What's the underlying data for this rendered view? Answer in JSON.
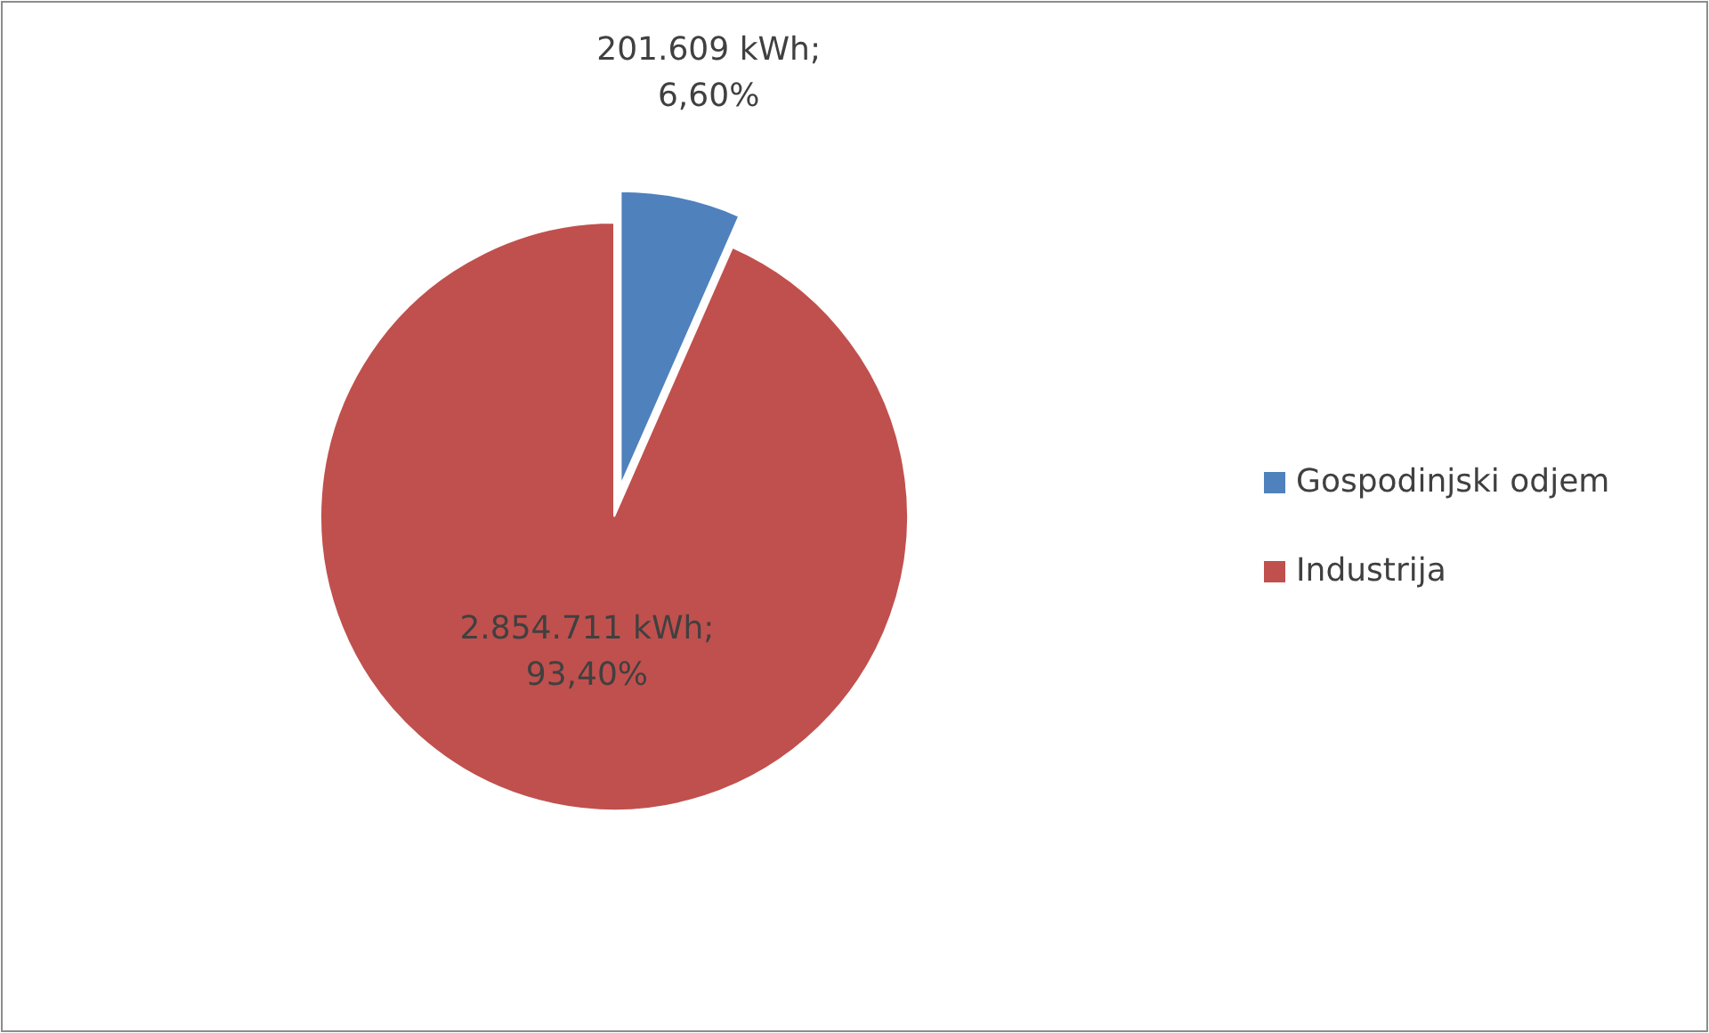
{
  "chart_data": {
    "type": "pie",
    "categories": [
      "Gospodinjski odjem",
      "Industrija"
    ],
    "values": [
      201609,
      2854711
    ],
    "colors": [
      "#4f81bd",
      "#c0504d"
    ],
    "value_labels": [
      "201.609 kWh; 6,60%",
      "2.854.711 kWh; 93,40%"
    ],
    "legend": "right"
  }
}
